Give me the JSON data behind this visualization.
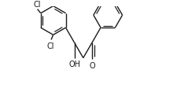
{
  "bg_color": "#ffffff",
  "line_color": "#1a1a1a",
  "line_width": 1.0,
  "font_size": 6.5,
  "figsize": [
    2.39,
    1.13
  ],
  "dpi": 100,
  "xlim": [
    0.3,
    4.5
  ],
  "ylim": [
    0.2,
    2.2
  ]
}
